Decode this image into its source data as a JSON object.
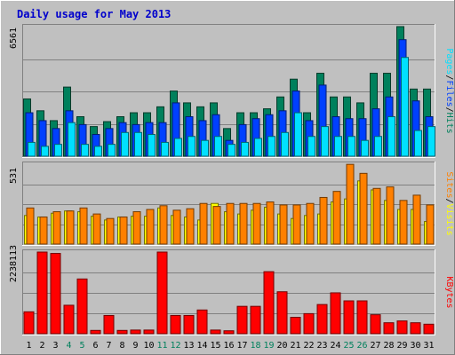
{
  "title": "Daily usage for May 2013",
  "colors": {
    "background": "#C0C0C0",
    "title": "#0000CC",
    "hits": "#00805C",
    "files": "#0040FF",
    "pages": "#00E0FF",
    "sites": "#FF8000",
    "visits": "#FFFF00",
    "kbytes": "#FF0000",
    "weekend_day": "#00805C",
    "weekday": "#000000"
  },
  "chart_data": [
    {
      "type": "bar",
      "panel": "hits-files-pages",
      "max_label": "6561",
      "legend": [
        {
          "text": "Pages",
          "key": "pages"
        },
        {
          "text": "/",
          "key": "sep"
        },
        {
          "text": "Files",
          "key": "files"
        },
        {
          "text": "/",
          "key": "sep"
        },
        {
          "text": "Hits",
          "key": "hits"
        }
      ],
      "ylim": [
        0,
        6561
      ],
      "grid": true,
      "categories": [
        "1",
        "2",
        "3",
        "4",
        "5",
        "6",
        "7",
        "8",
        "9",
        "10",
        "11",
        "12",
        "13",
        "14",
        "15",
        "16",
        "17",
        "18",
        "19",
        "20",
        "21",
        "22",
        "23",
        "24",
        "25",
        "26",
        "27",
        "28",
        "29",
        "30",
        "31"
      ],
      "series": [
        {
          "name": "Hits",
          "key": "hits",
          "values": [
            2900,
            2300,
            1800,
            3500,
            2000,
            1500,
            1750,
            2000,
            2200,
            2200,
            2500,
            3300,
            2700,
            2500,
            2700,
            1400,
            2200,
            2200,
            2400,
            3000,
            3900,
            2200,
            4200,
            3000,
            3000,
            2700,
            4200,
            4200,
            6561,
            3400,
            3400
          ]
        },
        {
          "name": "Files",
          "key": "files",
          "values": [
            2200,
            1800,
            1400,
            2300,
            1600,
            1100,
            1400,
            1700,
            1600,
            1700,
            1700,
            2700,
            2000,
            1800,
            2100,
            800,
            1600,
            1900,
            2100,
            2300,
            3300,
            1800,
            3600,
            2000,
            1900,
            1900,
            2400,
            3000,
            5900,
            2800,
            2000
          ]
        },
        {
          "name": "Pages",
          "key": "pages",
          "values": [
            700,
            500,
            600,
            1700,
            600,
            500,
            600,
            1200,
            1200,
            1100,
            700,
            900,
            1000,
            800,
            1000,
            600,
            700,
            900,
            1000,
            1200,
            2200,
            1000,
            1500,
            1000,
            1000,
            800,
            1000,
            2000,
            5000,
            1300,
            1500
          ]
        }
      ]
    },
    {
      "type": "bar",
      "panel": "sites-visits",
      "max_label": "531",
      "legend": [
        {
          "text": "Sites",
          "key": "sites"
        },
        {
          "text": "/",
          "key": "sep"
        },
        {
          "text": "Visits",
          "key": "visits"
        }
      ],
      "ylim": [
        0,
        531
      ],
      "grid": true,
      "categories": [
        "1",
        "2",
        "3",
        "4",
        "5",
        "6",
        "7",
        "8",
        "9",
        "10",
        "11",
        "12",
        "13",
        "14",
        "15",
        "16",
        "17",
        "18",
        "19",
        "20",
        "21",
        "22",
        "23",
        "24",
        "25",
        "26",
        "27",
        "28",
        "29",
        "30",
        "31"
      ],
      "series": [
        {
          "name": "Visits",
          "key": "visits",
          "values": [
            190,
            180,
            205,
            220,
            215,
            185,
            160,
            180,
            185,
            185,
            240,
            190,
            180,
            160,
            270,
            215,
            200,
            225,
            245,
            200,
            170,
            190,
            200,
            280,
            300,
            420,
            360,
            290,
            230,
            230,
            150
          ]
        },
        {
          "name": "Sites",
          "key": "sites",
          "values": [
            240,
            180,
            215,
            220,
            240,
            200,
            170,
            180,
            215,
            230,
            255,
            225,
            235,
            270,
            250,
            270,
            270,
            270,
            280,
            260,
            260,
            270,
            310,
            350,
            530,
            470,
            370,
            380,
            290,
            325,
            260
          ]
        }
      ]
    },
    {
      "type": "bar",
      "panel": "kbytes",
      "max_label": "2238113",
      "legend": [
        {
          "text": "KBytes",
          "key": "kbytes"
        }
      ],
      "ylim": [
        0,
        2238113
      ],
      "grid": true,
      "categories": [
        "1",
        "2",
        "3",
        "4",
        "5",
        "6",
        "7",
        "8",
        "9",
        "10",
        "11",
        "12",
        "13",
        "14",
        "15",
        "16",
        "17",
        "18",
        "19",
        "20",
        "21",
        "22",
        "23",
        "24",
        "25",
        "26",
        "27",
        "28",
        "29",
        "30",
        "31"
      ],
      "series": [
        {
          "name": "KBytes",
          "key": "kbytes",
          "values": [
            600000,
            2238113,
            2200000,
            780000,
            1500000,
            90000,
            500000,
            90000,
            100000,
            100000,
            2238113,
            500000,
            500000,
            650000,
            100000,
            80000,
            750000,
            750000,
            1700000,
            1150000,
            450000,
            550000,
            800000,
            1120000,
            900000,
            900000,
            520000,
            300000,
            350000,
            300000,
            260000
          ]
        }
      ]
    }
  ],
  "x_axis": {
    "days": [
      "1",
      "2",
      "3",
      "4",
      "5",
      "6",
      "7",
      "8",
      "9",
      "10",
      "11",
      "12",
      "13",
      "14",
      "15",
      "16",
      "17",
      "18",
      "19",
      "20",
      "21",
      "22",
      "23",
      "24",
      "25",
      "26",
      "27",
      "28",
      "29",
      "30",
      "31"
    ],
    "weekend": [
      "4",
      "5",
      "11",
      "12",
      "18",
      "19",
      "25",
      "26"
    ]
  }
}
